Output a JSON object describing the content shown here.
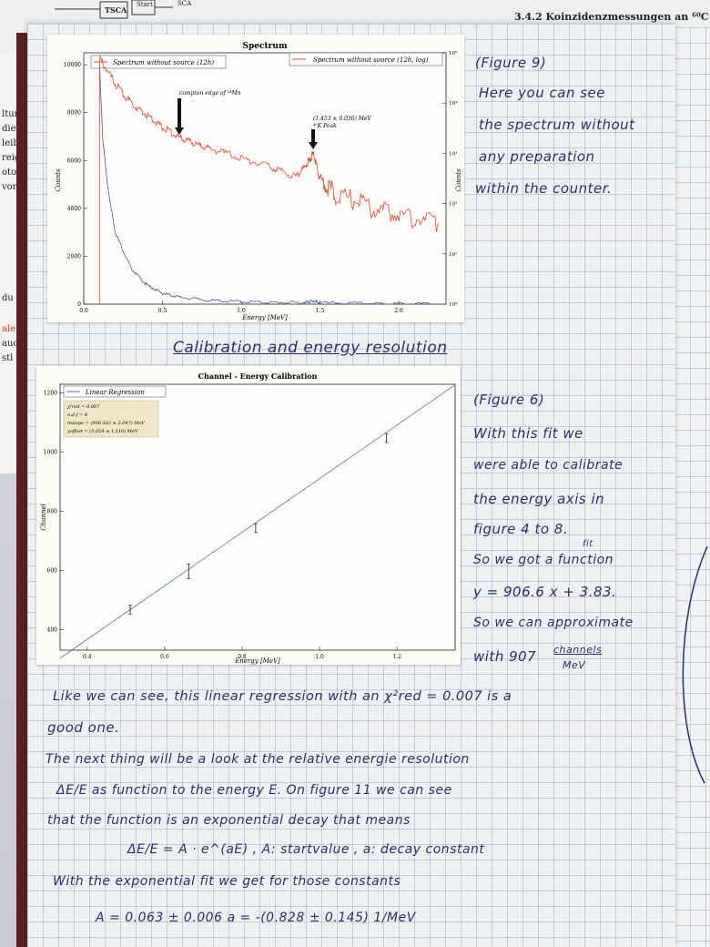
{
  "background_sheet": {
    "tsca_label": "TSCA",
    "start_label": "Start",
    "sca_label": "SCA",
    "section_heading": "3.4.2 Koinzidenzmessungen an ⁶⁰C",
    "margin_fragments": [
      "ltun",
      "die",
      "leib",
      "reig",
      "oton",
      "vor",
      "du",
      "ale",
      "auc",
      "stl"
    ]
  },
  "spectrum_plot": {
    "title": "Spectrum",
    "legend_left": "Spectrum without source (12h)",
    "legend_right": "Spectrum without source (12h, log)",
    "xlabel": "Energy [MeV]",
    "ylabel_left": "Counts",
    "ylabel_right": "Counts",
    "annotation_compton": "compton edge of ⁵⁴Mn",
    "annotation_peak_value": "(1.453 ± 0.036) MeV",
    "annotation_peak_label": "⁴⁰K Peak",
    "x_ticks": [
      "0.0",
      "0.5",
      "1.0",
      "1.5",
      "2.0"
    ],
    "y_ticks_left": [
      "0",
      "2000",
      "4000",
      "6000",
      "8000",
      "10000"
    ],
    "y_ticks_right": [
      "10⁰",
      "10¹",
      "10²",
      "10³",
      "10⁴",
      "10⁵"
    ],
    "colors": {
      "linear": "#3b5fa8",
      "log": "#e04a2f"
    }
  },
  "calibration_plot": {
    "title": "Channel - Energy Calibration",
    "legend": "Linear Regression",
    "stats": [
      "χ²red = 0.007",
      "n.d.f = 4",
      "mslope = (906.583 ± 2.047) MeV",
      "yoffset = (3.828 ± 1.510) MeV"
    ],
    "xlabel": "Energy [MeV]",
    "ylabel": "Channel",
    "x_ticks": [
      "0.4",
      "0.6",
      "0.8",
      "1.0",
      "1.2"
    ],
    "y_ticks": [
      "400",
      "600",
      "800",
      "1000",
      "1200"
    ],
    "line_color": "#5a6fb8"
  },
  "chart_data": [
    {
      "type": "line",
      "title": "Spectrum",
      "xlabel": "Energy [MeV]",
      "ylabel": "Counts",
      "xlim": [
        0.0,
        2.3
      ],
      "ylim": [
        0,
        10500
      ],
      "series": [
        {
          "name": "Spectrum without source (12h)",
          "x": [
            0.1,
            0.12,
            0.15,
            0.2,
            0.3,
            0.4,
            0.5,
            0.6,
            0.8,
            1.0,
            1.2,
            1.4,
            1.45,
            1.5,
            1.8,
            2.0,
            2.25
          ],
          "y": [
            10000,
            7000,
            5000,
            3000,
            1500,
            800,
            450,
            300,
            150,
            100,
            70,
            60,
            130,
            55,
            30,
            20,
            15
          ]
        },
        {
          "name": "Spectrum without source (12h, log)",
          "x": [
            0.1,
            0.2,
            0.3,
            0.4,
            0.5,
            0.6,
            0.7,
            0.8,
            1.0,
            1.2,
            1.35,
            1.42,
            1.46,
            1.5,
            1.6,
            1.8,
            2.0,
            2.25
          ],
          "y": [
            10300,
            9200,
            8400,
            7900,
            7400,
            7000,
            6700,
            6500,
            6100,
            5700,
            5300,
            5900,
            6300,
            5200,
            4600,
            4100,
            3700,
            3400
          ]
        }
      ]
    },
    {
      "type": "line",
      "title": "Channel - Energy Calibration",
      "xlabel": "Energy [MeV]",
      "ylabel": "Channel",
      "xlim": [
        0.33,
        1.35
      ],
      "ylim": [
        330,
        1230
      ],
      "series": [
        {
          "name": "Linear Regression",
          "x": [
            0.33,
            1.35
          ],
          "y": [
            303,
            1228
          ]
        },
        {
          "name": "",
          "x": [
            0.511,
            0.662,
            0.835,
            1.173
          ],
          "y": [
            467,
            597,
            743,
            1048
          ],
          "yerr": [
            15,
            25,
            15,
            15
          ]
        }
      ]
    }
  ],
  "notes": {
    "fig9": [
      "(Figure 9)",
      "Here you can see",
      "the spectrum without",
      "any preparation",
      "within the counter."
    ],
    "section_title": "Calibration and energy resolution",
    "fig6": [
      "(Figure 6)",
      "With this fit we",
      "were able to calibrate",
      "the energy axis in",
      "figure 4 to 8.",
      "fit",
      "So we got a function",
      "y = 906.6 x + 3.83.",
      "So we can approximate",
      "with 907"
    ],
    "fraction_num": "channels",
    "fraction_den": "MeV",
    "body": [
      "Like we can see, this linear regression with an χ²red = 0.007 is a",
      "good one.",
      "The next thing will be a look at the relative energie resolution",
      "ΔE/E as function to the energy E. On figure 11 we can see",
      "that the function is an exponential decay that means",
      "ΔE/E = A · e^(aE)    , A: startvalue , a: decay constant",
      "With the exponential fit we get for those constants",
      "A = 0.063 ± 0.006                    a = -(0.828 ± 0.145) 1/MeV"
    ]
  }
}
